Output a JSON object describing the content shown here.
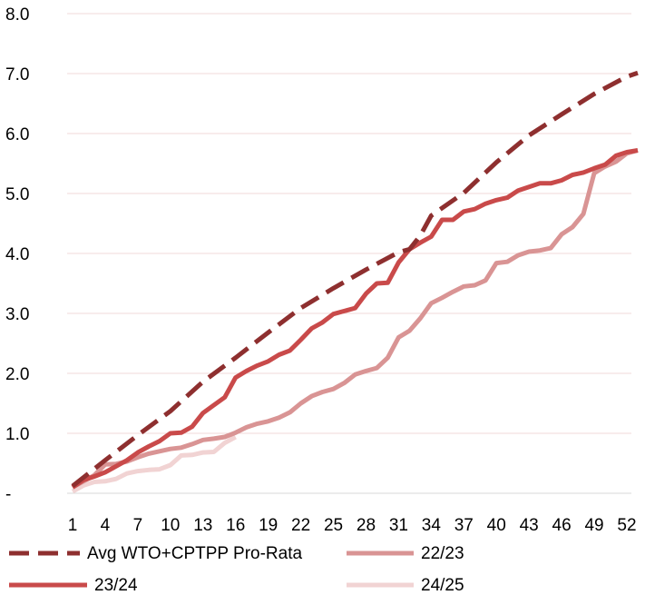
{
  "chart_data": {
    "type": "line",
    "x_ticks": [
      "1",
      "4",
      "7",
      "10",
      "13",
      "16",
      "19",
      "22",
      "25",
      "28",
      "31",
      "34",
      "37",
      "40",
      "43",
      "46",
      "49",
      "52"
    ],
    "y_ticks": [
      "-",
      "1.0",
      "2.0",
      "3.0",
      "4.0",
      "5.0",
      "6.0",
      "7.0",
      "8.0"
    ],
    "ylim": [
      0,
      8
    ],
    "xlim": [
      1,
      52
    ],
    "grid": true,
    "legend_position": "bottom",
    "series": [
      {
        "name": "Avg WTO+CPTPP Pro-Rata",
        "color": "#8e2f2f",
        "dash": "dashed",
        "x": [
          1,
          4,
          7,
          10,
          13,
          16,
          19,
          22,
          25,
          28,
          31,
          32,
          33,
          34,
          37,
          40,
          43,
          46,
          49,
          52,
          53
        ],
        "y": [
          0.12,
          0.55,
          0.97,
          1.37,
          1.86,
          2.26,
          2.68,
          3.09,
          3.42,
          3.73,
          4.02,
          4.07,
          4.3,
          4.63,
          5.01,
          5.52,
          5.97,
          6.32,
          6.66,
          6.95,
          7.01
        ]
      },
      {
        "name": "22/23",
        "color": "#d99494",
        "dash": "solid",
        "x": [
          1,
          2,
          3,
          4,
          5,
          6,
          7,
          8,
          9,
          10,
          11,
          12,
          13,
          14,
          15,
          16,
          17,
          18,
          19,
          20,
          21,
          22,
          23,
          24,
          25,
          26,
          27,
          28,
          29,
          30,
          31,
          32,
          33,
          34,
          35,
          36,
          37,
          38,
          39,
          40,
          41,
          42,
          43,
          44,
          45,
          46,
          47,
          48,
          49,
          50,
          51,
          52,
          53
        ],
        "y": [
          0.1,
          0.2,
          0.3,
          0.48,
          0.49,
          0.53,
          0.6,
          0.66,
          0.7,
          0.74,
          0.76,
          0.82,
          0.89,
          0.91,
          0.94,
          1.01,
          1.1,
          1.16,
          1.2,
          1.26,
          1.35,
          1.5,
          1.62,
          1.69,
          1.74,
          1.84,
          1.98,
          2.04,
          2.09,
          2.26,
          2.6,
          2.71,
          2.92,
          3.17,
          3.26,
          3.36,
          3.45,
          3.47,
          3.55,
          3.84,
          3.86,
          3.97,
          4.03,
          4.05,
          4.09,
          4.32,
          4.44,
          4.66,
          5.34,
          5.45,
          5.53,
          5.67,
          5.72
        ]
      },
      {
        "name": "23/24",
        "color": "#c94a4a",
        "dash": "solid",
        "x": [
          1,
          2,
          3,
          4,
          5,
          6,
          7,
          8,
          9,
          10,
          11,
          12,
          13,
          14,
          15,
          16,
          17,
          18,
          19,
          20,
          21,
          22,
          23,
          24,
          25,
          26,
          27,
          28,
          29,
          30,
          31,
          32,
          33,
          34,
          35,
          36,
          37,
          38,
          39,
          40,
          41,
          42,
          43,
          44,
          45,
          46,
          47,
          48,
          49,
          50,
          51,
          52,
          53
        ],
        "y": [
          0.1,
          0.22,
          0.28,
          0.35,
          0.45,
          0.55,
          0.68,
          0.78,
          0.87,
          1.0,
          1.01,
          1.11,
          1.34,
          1.47,
          1.6,
          1.93,
          2.04,
          2.13,
          2.2,
          2.31,
          2.38,
          2.56,
          2.75,
          2.85,
          2.99,
          3.04,
          3.09,
          3.33,
          3.5,
          3.51,
          3.85,
          4.07,
          4.18,
          4.28,
          4.56,
          4.56,
          4.7,
          4.74,
          4.83,
          4.89,
          4.93,
          5.05,
          5.11,
          5.17,
          5.17,
          5.22,
          5.31,
          5.35,
          5.42,
          5.48,
          5.63,
          5.69,
          5.72
        ]
      },
      {
        "name": "24/25",
        "color": "#f1d3d3",
        "dash": "solid",
        "x": [
          1,
          2,
          3,
          4,
          5,
          6,
          7,
          8,
          9,
          10,
          11,
          12,
          13,
          14,
          15,
          16
        ],
        "y": [
          0.03,
          0.13,
          0.19,
          0.2,
          0.24,
          0.33,
          0.37,
          0.39,
          0.4,
          0.47,
          0.63,
          0.64,
          0.68,
          0.69,
          0.84,
          0.94
        ]
      }
    ]
  }
}
